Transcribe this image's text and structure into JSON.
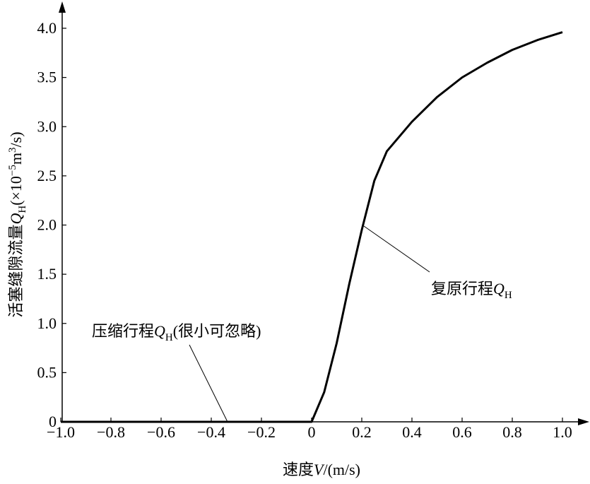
{
  "chart_data": {
    "type": "line",
    "xlabel_parts": [
      "速度",
      "V",
      "/(m/s)"
    ],
    "ylabel_parts": [
      "活塞缝隙流量",
      "Q",
      "H",
      "(×10",
      "−5",
      "m",
      "3",
      "/s)"
    ],
    "annotations": [
      {
        "parts": [
          "压缩行程",
          "Q",
          "H",
          "(很小可忽略)"
        ]
      },
      {
        "parts": [
          "复原行程",
          "Q",
          "H"
        ]
      }
    ],
    "x": [
      -1.0,
      -0.5,
      0,
      0.05,
      0.1,
      0.15,
      0.2,
      0.25,
      0.3,
      0.4,
      0.5,
      0.6,
      0.7,
      0.8,
      0.9,
      1.0
    ],
    "series": [
      {
        "color": "#000000",
        "values": [
          0,
          0,
          0,
          0.3,
          0.8,
          1.4,
          1.95,
          2.45,
          2.75,
          3.05,
          3.3,
          3.5,
          3.65,
          3.78,
          3.88,
          3.96
        ]
      }
    ],
    "xlim": [
      -1.0,
      1.1
    ],
    "ylim": [
      0,
      4.25
    ],
    "xticks": [
      {
        "value": -1.0,
        "label": "−1.0"
      },
      {
        "value": -0.8,
        "label": "−0.8"
      },
      {
        "value": -0.6,
        "label": "−0.6"
      },
      {
        "value": -0.4,
        "label": "−0.4"
      },
      {
        "value": -0.2,
        "label": "−0.2"
      },
      0,
      0.2,
      0.4,
      0.6,
      0.8,
      {
        "value": 1.0,
        "label": "1.0"
      }
    ],
    "yticks": [
      0,
      0.5,
      {
        "value": 1.0,
        "label": "1.0"
      },
      1.5,
      {
        "value": 2.0,
        "label": "2.0"
      },
      2.5,
      {
        "value": 3.0,
        "label": "3.0"
      },
      3.5,
      {
        "value": 4.0,
        "label": "4.0"
      }
    ],
    "grid": false
  }
}
